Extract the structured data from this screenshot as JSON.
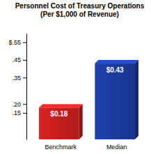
{
  "chart_data": {
    "type": "bar",
    "title": "Personnel Cost of Treasury Operations",
    "subtitle": "(Per $1,000 of Revenue)",
    "categories": [
      "Benchmark",
      "Median"
    ],
    "values": [
      0.18,
      0.43
    ],
    "value_labels": [
      "$0.18",
      "$0.43"
    ],
    "colors": [
      "#c41e1e",
      "#1c3a9c"
    ],
    "ylim": [
      0,
      0.6
    ],
    "yticks": [
      {
        "value": 0.55,
        "label": "$.55"
      },
      {
        "value": 0.45,
        "label": ".45"
      },
      {
        "value": 0.35,
        "label": ".35"
      },
      {
        "value": 0.2,
        "label": ".20"
      },
      {
        "value": 0.15,
        "label": ".15"
      }
    ],
    "grid": false,
    "data_labels": true
  }
}
